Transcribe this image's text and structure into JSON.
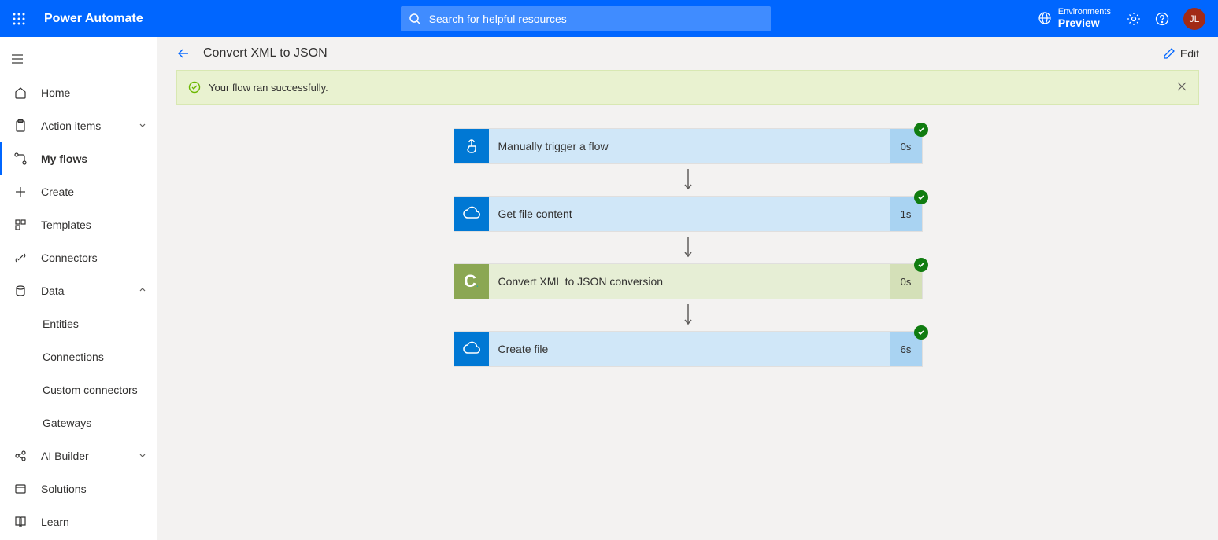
{
  "header": {
    "product": "Power Automate",
    "search_placeholder": "Search for helpful resources",
    "env_label": "Environments",
    "env_name": "Preview",
    "avatar_initials": "JL"
  },
  "sidebar": {
    "home": "Home",
    "action_items": "Action items",
    "my_flows": "My flows",
    "create": "Create",
    "templates": "Templates",
    "connectors": "Connectors",
    "data": "Data",
    "entities": "Entities",
    "connections": "Connections",
    "custom_connectors": "Custom connectors",
    "gateways": "Gateways",
    "ai_builder": "AI Builder",
    "solutions": "Solutions",
    "learn": "Learn"
  },
  "crumb": {
    "title": "Convert XML to JSON",
    "edit": "Edit"
  },
  "banner": {
    "message": "Your flow ran successfully."
  },
  "steps": [
    {
      "label": "Manually trigger a flow",
      "time": "0s",
      "variant": "blue",
      "icon": "touch"
    },
    {
      "label": "Get file content",
      "time": "1s",
      "variant": "blue",
      "icon": "cloud"
    },
    {
      "label": "Convert XML to JSON conversion",
      "time": "0s",
      "variant": "green",
      "icon": "c"
    },
    {
      "label": "Create file",
      "time": "6s",
      "variant": "blue",
      "icon": "cloud"
    }
  ],
  "colors": {
    "header_bg": "#0066ff",
    "success_bg": "#e9f2d0",
    "step_blue": "#0078d4",
    "step_green": "#8ba753",
    "check_green": "#107c10",
    "avatar_bg": "#a22b16"
  }
}
